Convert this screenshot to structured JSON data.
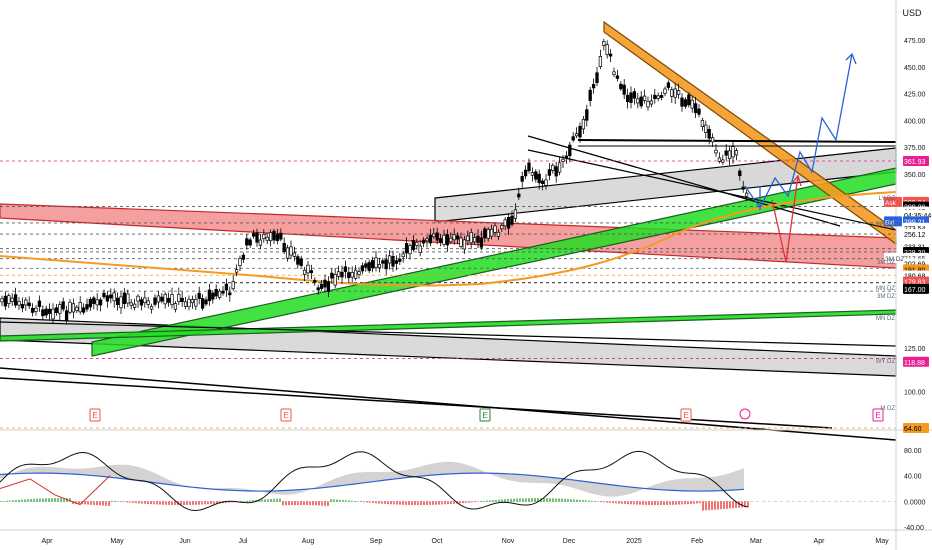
{
  "app": {
    "currency": "USD"
  },
  "colors": {
    "up": "#ffffff",
    "down": "#000000",
    "wick": "#000000",
    "green": "#22dd22",
    "red": "#ef5350",
    "orange": "#f59a23",
    "gray": "#c9c9c9",
    "blue": "#2a62d8",
    "arrow_red": "#e0303b"
  },
  "price_axis": {
    "ticks": [
      "475.00",
      "450.00",
      "425.00",
      "400.00",
      "375.00",
      "350.00",
      "125.00",
      "100.00",
      "75.00",
      "50.00"
    ],
    "tags": [
      {
        "text": "361.93",
        "bg": "#e91e90",
        "fg": "#ffffff",
        "price": 361.93
      },
      {
        "text": "299.34",
        "bg": "#ef5350",
        "fg": "#ffffff",
        "price": 306.5,
        "prefix": "Ask"
      },
      {
        "text": "299.29",
        "bg": "#000000",
        "fg": "#ffffff",
        "price": 299.0
      },
      {
        "text": "299.27",
        "bg": "#ffffff",
        "fg": "#000000",
        "price": 291.5
      },
      {
        "text": "04:35:44",
        "bg": "#ffffff",
        "fg": "#000000",
        "price": 286.0
      },
      {
        "text": "299.21",
        "bg": "#2a62d8",
        "fg": "#ffffff",
        "price": 276.0,
        "prefix": "Bid"
      },
      {
        "text": "273.54",
        "bg": "#ffffff",
        "fg": "#000000",
        "price": 266.0
      },
      {
        "text": "256.12",
        "bg": "#ffffff",
        "fg": "#000000",
        "price": 256.12
      },
      {
        "text": "233.31",
        "bg": "#ffffff",
        "fg": "#000000",
        "price": 237.0
      },
      {
        "text": "228.20",
        "bg": "#000000",
        "fg": "#ffffff",
        "price": 228.2
      },
      {
        "text": "217.65",
        "bg": "#ffffff",
        "fg": "#444444",
        "price": 219.0,
        "prefix": "3M DZ"
      },
      {
        "text": "202.69",
        "bg": "#ffffff",
        "fg": "#000000",
        "price": 210.0
      },
      {
        "text": "191.80",
        "bg": "#f59a23",
        "fg": "#000000",
        "price": 201.0
      },
      {
        "text": "180.68",
        "bg": "#ffffff",
        "fg": "#000000",
        "price": 191.5
      },
      {
        "text": "179.83",
        "bg": "#ef5350",
        "fg": "#ffffff",
        "price": 182.0
      },
      {
        "text": "167.00",
        "bg": "#000000",
        "fg": "#ffffff",
        "price": 170.5
      },
      {
        "text": "118.88",
        "bg": "#e91e90",
        "fg": "#ffffff",
        "price": 117.0
      },
      {
        "text": "64.60",
        "bg": "#f59a23",
        "fg": "#000000",
        "price": 63.0
      }
    ],
    "zone_labels": [
      "LY DZ",
      "MN DZ",
      "3M DZ",
      "MN DZ",
      "3M DZ",
      "MN DZ",
      "WY DZ",
      "M DZ"
    ]
  },
  "osc_axis": {
    "ticks": [
      "80.00",
      "40.00",
      "0.0000",
      "-40.00"
    ]
  },
  "time_axis": {
    "labels": [
      "Apr",
      "May",
      "Jun",
      "Jul",
      "Aug",
      "Sep",
      "Oct",
      "Nov",
      "Dec",
      "2025",
      "Feb",
      "Mar",
      "Apr",
      "May"
    ]
  },
  "event_markers": [
    "E",
    "E",
    "E",
    "E",
    "E"
  ],
  "chart_data": {
    "type": "candlestick",
    "x_range": [
      "2024-04",
      "2025-05"
    ],
    "ylim": [
      50,
      490
    ],
    "price_series": [
      {
        "month": "Apr",
        "close": 172
      },
      {
        "month": "May",
        "close": 180
      },
      {
        "month": "Jun",
        "close": 187
      },
      {
        "month": "Jul",
        "close": 250
      },
      {
        "month": "Aug",
        "close": 205
      },
      {
        "month": "Sep",
        "close": 230
      },
      {
        "month": "Oct",
        "close": 258
      },
      {
        "month": "Nov",
        "close": 345
      },
      {
        "month": "Dec",
        "close": 460
      },
      {
        "month": "Jan",
        "close": 410
      },
      {
        "month": "Feb",
        "close": 345
      },
      {
        "month": "Mar",
        "close": 290
      }
    ],
    "key_levels": [
      361.93,
      299.29,
      273.54,
      256.12,
      233.31,
      228.2,
      217.65,
      202.69,
      191.8,
      180.68,
      179.83,
      167.0,
      118.88,
      64.6
    ],
    "oscillator": {
      "ylim": [
        -40,
        100
      ]
    }
  }
}
